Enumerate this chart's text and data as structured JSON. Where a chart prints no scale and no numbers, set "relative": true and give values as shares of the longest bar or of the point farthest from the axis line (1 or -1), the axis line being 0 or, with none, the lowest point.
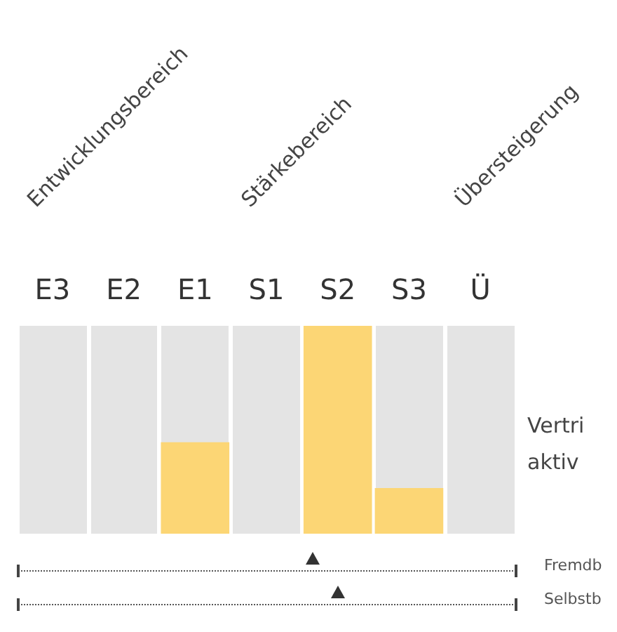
{
  "chart_data": {
    "type": "bar",
    "categories": [
      "E3",
      "E2",
      "E1",
      "S1",
      "S2",
      "S3",
      "Ü"
    ],
    "values": [
      0,
      0,
      0.44,
      0,
      1,
      0.22,
      0
    ],
    "color": "#fcd675",
    "relative": true,
    "grid": true,
    "annotations": [
      "Entwicklungsbereich",
      "Stärkebereich",
      "Übersteigerung",
      "Vertri aktiv",
      "Fremdb",
      "Selbstb"
    ]
  }
}
